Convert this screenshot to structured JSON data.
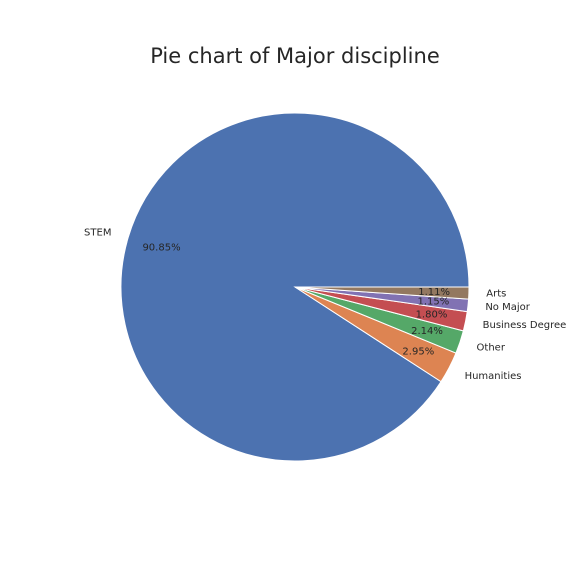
{
  "chart_data": {
    "type": "pie",
    "title": "Pie chart of Major discipline",
    "categories": [
      "STEM",
      "Humanities",
      "Other",
      "Business Degree",
      "No Major",
      "Arts"
    ],
    "values": [
      90.85,
      2.95,
      2.14,
      1.8,
      1.15,
      1.11
    ],
    "value_labels": [
      "90.85%",
      "2.95%",
      "2.14%",
      "1.80%",
      "1.15%",
      "1.11%"
    ],
    "colors": [
      "#4c72b0",
      "#dd8452",
      "#55a868",
      "#c44e52",
      "#8172b3",
      "#937860"
    ],
    "start_angle": 0,
    "direction": "counterclockwise"
  }
}
